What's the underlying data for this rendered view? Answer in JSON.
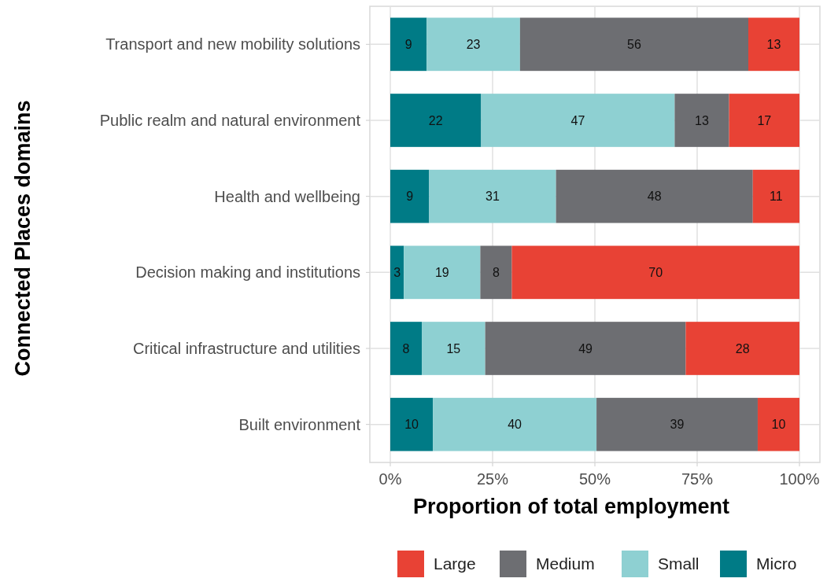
{
  "chart_data": {
    "type": "bar",
    "orientation": "horizontal",
    "stacked": true,
    "xlabel": "Proportion of total employment",
    "ylabel": "Connected Places domains",
    "categories": [
      "Transport and new mobility solutions",
      "Public realm and natural environment",
      "Health and wellbeing",
      "Decision making and institutions",
      "Critical infrastructure and utilities",
      "Built environment"
    ],
    "series": [
      {
        "name": "Micro",
        "color": "#007b86",
        "values": [
          8.9,
          22.2,
          9.5,
          3.3,
          7.7,
          10.4
        ],
        "value_labels": [
          "9",
          "22",
          "9",
          "3",
          "8",
          "10"
        ]
      },
      {
        "name": "Small",
        "color": "#8ed0d2",
        "values": [
          22.8,
          47.3,
          31.0,
          18.7,
          15.5,
          40.0
        ],
        "value_labels": [
          "23",
          "47",
          "31",
          "19",
          "15",
          "40"
        ]
      },
      {
        "name": "Medium",
        "color": "#6d6e72",
        "values": [
          55.8,
          13.3,
          48.1,
          7.7,
          49.0,
          39.4
        ],
        "value_labels": [
          "56",
          "13",
          "48",
          "8",
          "49",
          "39"
        ]
      },
      {
        "name": "Large",
        "color": "#e84235",
        "values": [
          12.5,
          17.2,
          11.4,
          70.3,
          27.8,
          10.2
        ],
        "value_labels": [
          "13",
          "17",
          "11",
          "70",
          "28",
          "10"
        ]
      }
    ],
    "xlim": [
      -5,
      105
    ],
    "xticks": [
      {
        "value": 0,
        "label": "0%"
      },
      {
        "value": 25,
        "label": "25%"
      },
      {
        "value": 50,
        "label": "50%"
      },
      {
        "value": 75,
        "label": "75%"
      },
      {
        "value": 100,
        "label": "100%"
      }
    ],
    "grid": true,
    "legend": "bottom"
  }
}
